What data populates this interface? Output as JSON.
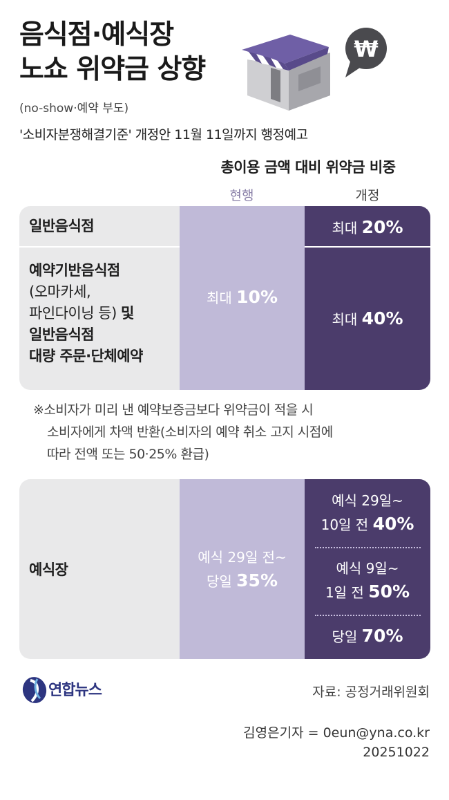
{
  "title": {
    "line1": "음식점·예식장",
    "line2": "노쇼 위약금 상향"
  },
  "subtitle": "(no-show·예약 부도)",
  "notice": "'소비자분쟁해결기준' 개정안 11월 11일까지 행정예고",
  "illustration": {
    "icon": "shop-icon",
    "badge_icon": "won-icon",
    "badge_text": "₩"
  },
  "table_header": {
    "title": "총이용 금액 대비 위약금 비중",
    "current": "현행",
    "revised": "개정"
  },
  "restaurant": {
    "row1": {
      "label": "일반음식점",
      "revised_prefix": "최대",
      "revised_pct": "20%"
    },
    "row2": {
      "label_line1": "예약기반음식점",
      "label_line2": "(오마카세,",
      "label_line3": "파인다이닝 등)",
      "label_line3_suffix": "및",
      "label_line4": "일반음식점",
      "label_line5": "대량 주문·단체예약",
      "revised_prefix": "최대",
      "revised_pct": "40%"
    },
    "current_prefix": "최대",
    "current_pct": "10%"
  },
  "note": {
    "line1": "※소비자가 미리 낸 예약보증금보다 위약금이 적을 시",
    "line2": "소비자에게 차액 반환(소비자의 예약 취소 고지 시점에",
    "line3": "따라 전액 또는 50·25% 환급)"
  },
  "wedding": {
    "label": "예식장",
    "current_line1": "예식 29일 전~",
    "current_line2_prefix": "당일",
    "current_pct": "35%",
    "revised": [
      {
        "line1": "예식 29일~",
        "line2_prefix": "10일 전",
        "pct": "40%"
      },
      {
        "line1": "예식 9일~",
        "line2_prefix": "1일 전",
        "pct": "50%"
      },
      {
        "line1": "",
        "line2_prefix": "당일",
        "pct": "70%"
      }
    ]
  },
  "footer": {
    "logo_text": "연합뉴스",
    "source": "자료: 공정거래위원회",
    "byline": "김영은기자 = 0eun@yna.co.kr",
    "date": "20251022"
  },
  "colors": {
    "current": "#c0bad8",
    "revised": "#4b3c6b",
    "row_bg": "#e9e9ea"
  }
}
